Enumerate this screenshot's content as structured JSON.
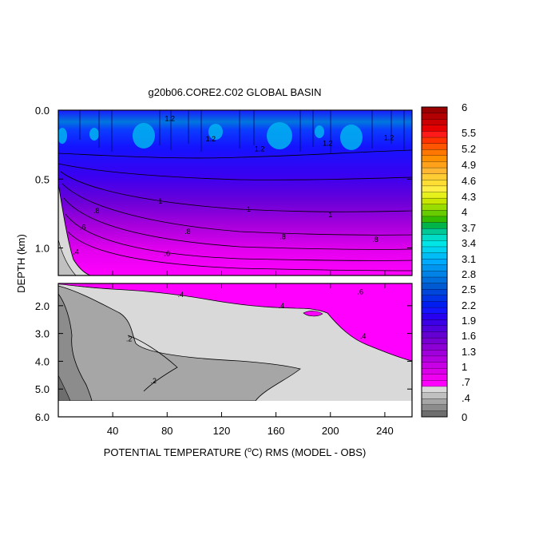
{
  "chart_data": {
    "type": "heatmap",
    "title": "g20b06.CORE2.C02 GLOBAL BASIN",
    "xlabel_prefix": "POTENTIAL TEMPERATURE (",
    "xlabel_unit_sup": "o",
    "xlabel_suffix": "C) RMS (MODEL - OBS)",
    "ylabel": "DEPTH (km)",
    "x_range": [
      0,
      260
    ],
    "x_ticks": [
      {
        "value": 40,
        "label": "40"
      },
      {
        "value": 80,
        "label": "80"
      },
      {
        "value": 120,
        "label": "120"
      },
      {
        "value": 160,
        "label": "160"
      },
      {
        "value": 200,
        "label": "200"
      },
      {
        "value": 240,
        "label": "240"
      }
    ],
    "top_panel": {
      "y_range": [
        0.0,
        1.2
      ],
      "y_ticks": [
        {
          "value": 0.0,
          "label": "0.0"
        },
        {
          "value": 0.5,
          "label": "0.5"
        },
        {
          "value": 1.0,
          "label": "1.0"
        }
      ],
      "contour_labels": [
        {
          "x": 82,
          "y": 0.06,
          "text": "1.2"
        },
        {
          "x": 112,
          "y": 0.21,
          "text": "1.2"
        },
        {
          "x": 148,
          "y": 0.28,
          "text": "1.2"
        },
        {
          "x": 198,
          "y": 0.24,
          "text": "1.2"
        },
        {
          "x": 243,
          "y": 0.2,
          "text": "1.2"
        },
        {
          "x": 75,
          "y": 0.66,
          "text": "1"
        },
        {
          "x": 140,
          "y": 0.72,
          "text": "1"
        },
        {
          "x": 200,
          "y": 0.76,
          "text": "1"
        },
        {
          "x": 28,
          "y": 0.73,
          "text": ".8"
        },
        {
          "x": 18,
          "y": 0.85,
          "text": ".6"
        },
        {
          "x": 95,
          "y": 0.88,
          "text": ".8"
        },
        {
          "x": 165,
          "y": 0.92,
          "text": ".8"
        },
        {
          "x": 233,
          "y": 0.94,
          "text": ".8"
        },
        {
          "x": 80,
          "y": 1.04,
          "text": ".6"
        },
        {
          "x": 13,
          "y": 1.03,
          "text": ".4"
        }
      ]
    },
    "bottom_panel": {
      "y_range": [
        1.2,
        6.0
      ],
      "y_ticks": [
        {
          "value": 2.0,
          "label": "2.0"
        },
        {
          "value": 3.0,
          "label": "3.0"
        },
        {
          "value": 4.0,
          "label": "4.0"
        },
        {
          "value": 5.0,
          "label": "5.0"
        },
        {
          "value": 6.0,
          "label": "6.0"
        }
      ],
      "contour_labels": [
        {
          "x": 90,
          "y": 1.6,
          "text": ".4"
        },
        {
          "x": 164,
          "y": 2.0,
          "text": ".4"
        },
        {
          "x": 222,
          "y": 1.5,
          "text": ".6"
        },
        {
          "x": 224,
          "y": 3.1,
          "text": ".4"
        },
        {
          "x": 52,
          "y": 3.2,
          "text": ".2"
        },
        {
          "x": 70,
          "y": 4.7,
          "text": ".2"
        }
      ]
    },
    "colorbar": {
      "levels": [
        {
          "value": 6,
          "label": "6"
        },
        {
          "value": 5.5,
          "label": "5.5"
        },
        {
          "value": 5.2,
          "label": "5.2"
        },
        {
          "value": 4.9,
          "label": "4.9"
        },
        {
          "value": 4.6,
          "label": "4.6"
        },
        {
          "value": 4.3,
          "label": "4.3"
        },
        {
          "value": 4,
          "label": "4"
        },
        {
          "value": 3.7,
          "label": "3.7"
        },
        {
          "value": 3.4,
          "label": "3.4"
        },
        {
          "value": 3.1,
          "label": "3.1"
        },
        {
          "value": 2.8,
          "label": "2.8"
        },
        {
          "value": 2.5,
          "label": "2.5"
        },
        {
          "value": 2.2,
          "label": "2.2"
        },
        {
          "value": 1.9,
          "label": "1.9"
        },
        {
          "value": 1.6,
          "label": "1.6"
        },
        {
          "value": 1.3,
          "label": "1.3"
        },
        {
          "value": 1,
          "label": "1"
        },
        {
          "value": 0.7,
          "label": ".7"
        },
        {
          "value": 0.4,
          "label": ".4"
        },
        {
          "value": 0,
          "label": "0"
        }
      ],
      "colors_top_to_bottom": [
        "#9b0000",
        "#b30000",
        "#cc0000",
        "#e60000",
        "#ff1a1a",
        "#ff3300",
        "#ff5500",
        "#ff7700",
        "#ff9100",
        "#ffa21a",
        "#ffb733",
        "#ffcc33",
        "#ffdd33",
        "#ffee44",
        "#e6f01a",
        "#c8e600",
        "#99dd00",
        "#66cc00",
        "#33bb00",
        "#00b44a",
        "#00c896",
        "#00dcc8",
        "#00e6e6",
        "#00d2f0",
        "#00bef5",
        "#00aaff",
        "#0096f0",
        "#0082e6",
        "#006edc",
        "#005ad2",
        "#0046dc",
        "#0032e6",
        "#001ef0",
        "#1414ff",
        "#2800f0",
        "#3c00e6",
        "#5000dc",
        "#6400d2",
        "#7800d2",
        "#8c00d6",
        "#a000dc",
        "#b400e0",
        "#c800e6",
        "#dc00ea",
        "#f000f0",
        "#ff00ff",
        "#d9d9d9",
        "#c0c0c0",
        "#a6a6a6",
        "#8c8c8c",
        "#6e6e6e"
      ]
    }
  }
}
